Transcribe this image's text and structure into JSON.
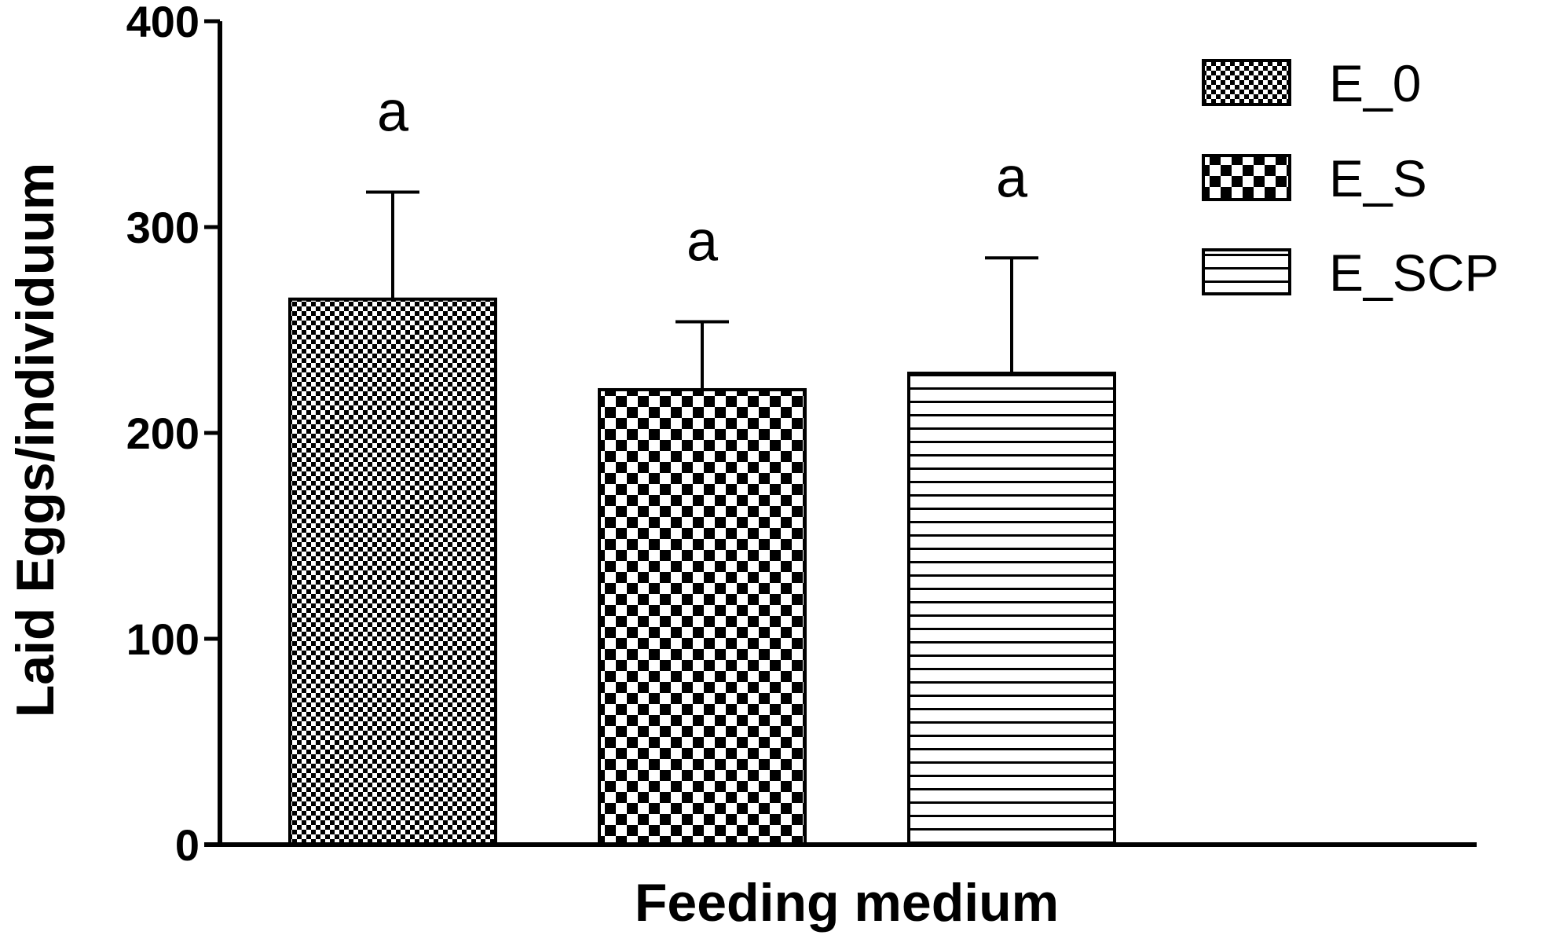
{
  "chart_data": {
    "type": "bar",
    "categories": [
      "E_0",
      "E_S",
      "E_SCP"
    ],
    "values": [
      265,
      221,
      229
    ],
    "error_upper": [
      317,
      254,
      285
    ],
    "significance_labels": [
      "a",
      "a",
      "a"
    ],
    "title": "",
    "xlabel": "Feeding medium",
    "ylabel": "Laid Eggs/individuum",
    "ylim": [
      0,
      400
    ],
    "yticks": [
      0,
      100,
      200,
      300,
      400
    ],
    "ytick_labels": [
      "0",
      "100",
      "200",
      "300",
      "400"
    ],
    "grid": false,
    "legend": {
      "position": "top-right",
      "entries": [
        {
          "label": "E_0",
          "pattern": "fine-dots"
        },
        {
          "label": "E_S",
          "pattern": "checkerboard"
        },
        {
          "label": "E_SCP",
          "pattern": "horizontal-lines"
        }
      ]
    },
    "colors": {
      "ink": "#000000",
      "background": "#ffffff"
    }
  }
}
